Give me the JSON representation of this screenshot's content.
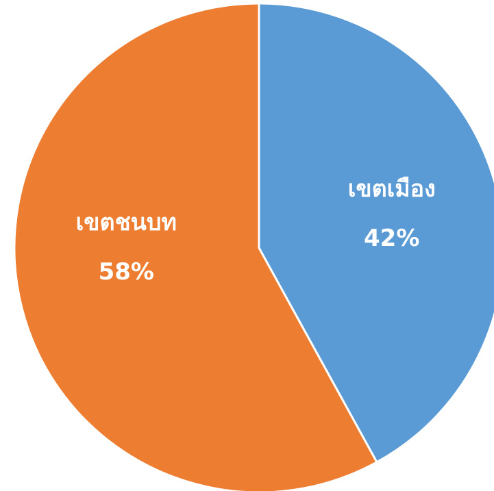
{
  "chart_data": {
    "type": "pie",
    "categories": [
      "เขตเมือง",
      "เขตชนบท"
    ],
    "values": [
      42,
      58
    ],
    "value_labels": [
      "42%",
      "58%"
    ],
    "colors": [
      "#5b9bd5",
      "#ed7d31"
    ]
  }
}
